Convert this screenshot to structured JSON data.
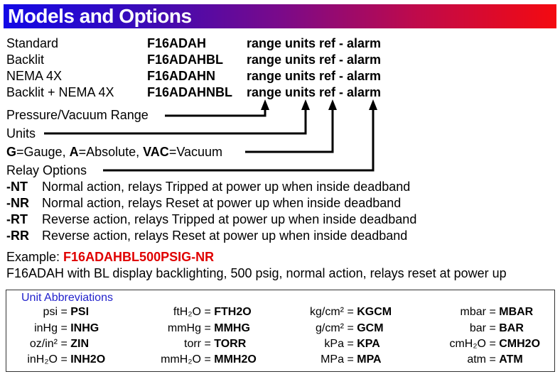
{
  "header": {
    "title": "Models and Options"
  },
  "models": [
    {
      "label": "Standard",
      "model": "F16ADAH",
      "suffix": "range units ref - alarm"
    },
    {
      "label": "Backlit",
      "model": "F16ADAHBL",
      "suffix": "range units ref - alarm"
    },
    {
      "label": "NEMA 4X",
      "model": "F16ADAHN",
      "suffix": "range units ref - alarm"
    },
    {
      "label": "Backlit + NEMA 4X",
      "model": "F16ADAHNBL",
      "suffix": "range units ref - alarm"
    }
  ],
  "callouts": {
    "range": "Pressure/Vacuum Range",
    "units": "Units",
    "ref": {
      "g": "G",
      "g_text": "=Gauge, ",
      "a": "A",
      "a_text": "=Absolute, ",
      "vac": "VAC",
      "vac_text": "=Vacuum"
    },
    "relay": "Relay Options"
  },
  "relay_options": [
    {
      "code": "-NT",
      "desc": "Normal action, relays Tripped at power up when inside deadband"
    },
    {
      "code": "-NR",
      "desc": "Normal action, relays Reset at power up when inside deadband"
    },
    {
      "code": "-RT",
      "desc": "Reverse action, relays Tripped at power up when inside deadband"
    },
    {
      "code": "-RR",
      "desc": "Reverse action, relays Reset at power up when inside deadband"
    }
  ],
  "example": {
    "label": "Example: ",
    "code": "F16ADAHBL500PSIG-NR",
    "description": "F16ADAH with BL display backlighting, 500 psig, normal action, relays reset at power up"
  },
  "abbreviations": {
    "title": "Unit Abbreviations",
    "columns": [
      [
        {
          "unit": "psi",
          "code": "PSI"
        },
        {
          "unit": "inHg",
          "code": "INHG"
        },
        {
          "unit": "oz/in²",
          "code": "ZIN"
        },
        {
          "unit": "inH₂O",
          "code": "INH2O"
        }
      ],
      [
        {
          "unit": "ftH₂O",
          "code": "FTH2O"
        },
        {
          "unit": "mmHg",
          "code": "MMHG"
        },
        {
          "unit": "torr",
          "code": "TORR"
        },
        {
          "unit": "mmH₂O",
          "code": "MMH2O"
        }
      ],
      [
        {
          "unit": "kg/cm²",
          "code": "KGCM"
        },
        {
          "unit": "g/cm²",
          "code": "GCM"
        },
        {
          "unit": "kPa",
          "code": "KPA"
        },
        {
          "unit": "MPa",
          "code": "MPA"
        }
      ],
      [
        {
          "unit": "mbar",
          "code": "MBAR"
        },
        {
          "unit": "bar",
          "code": "BAR"
        },
        {
          "unit": "cmH₂O",
          "code": "CMH2O"
        },
        {
          "unit": "atm",
          "code": "ATM"
        }
      ]
    ]
  }
}
